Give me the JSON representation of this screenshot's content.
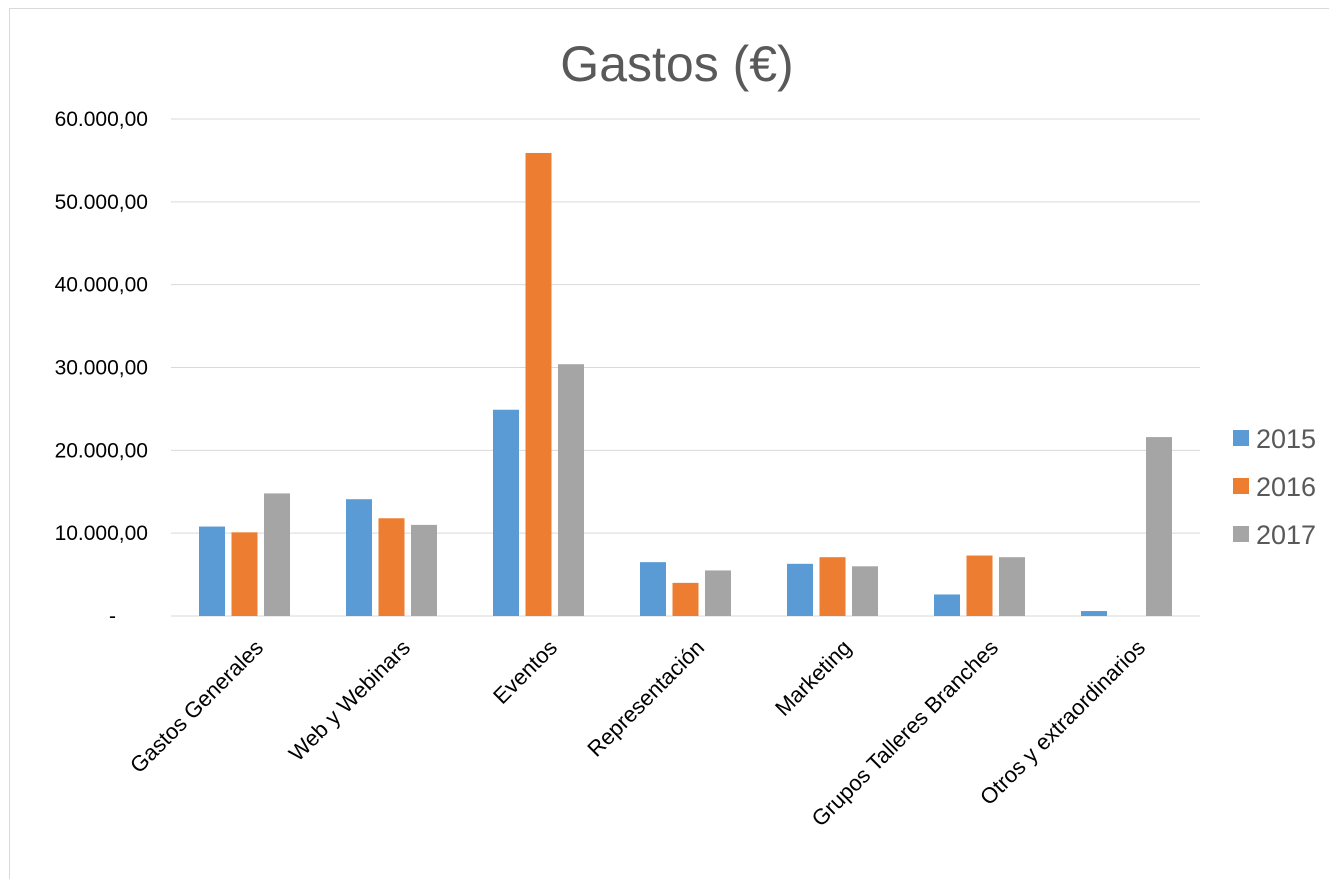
{
  "chart_data": {
    "type": "bar",
    "title": "Gastos (€)",
    "categories": [
      "Gastos Generales",
      "Web y Webinars",
      "Eventos",
      "Representación",
      "Marketing",
      "Grupos Talleres Branches",
      "Otros y extraordinarios"
    ],
    "series": [
      {
        "name": "2015",
        "color": "#5b9bd5",
        "values": [
          10800,
          14100,
          24900,
          6500,
          6300,
          2600,
          600
        ]
      },
      {
        "name": "2016",
        "color": "#ed7d31",
        "values": [
          10100,
          11800,
          55900,
          4000,
          7100,
          7300,
          0
        ]
      },
      {
        "name": "2017",
        "color": "#a5a5a5",
        "values": [
          14800,
          11000,
          30400,
          5500,
          6000,
          7100,
          21600
        ]
      }
    ],
    "ylim": [
      0,
      60000
    ],
    "yticks": [
      0,
      10000,
      20000,
      30000,
      40000,
      50000,
      60000
    ],
    "ytick_labels": [
      "-",
      "10.000,00",
      "20.000,00",
      "30.000,00",
      "40.000,00",
      "50.000,00",
      "60.000,00"
    ],
    "xlabel": "",
    "ylabel": "",
    "grid": true,
    "legend_position": "right"
  }
}
